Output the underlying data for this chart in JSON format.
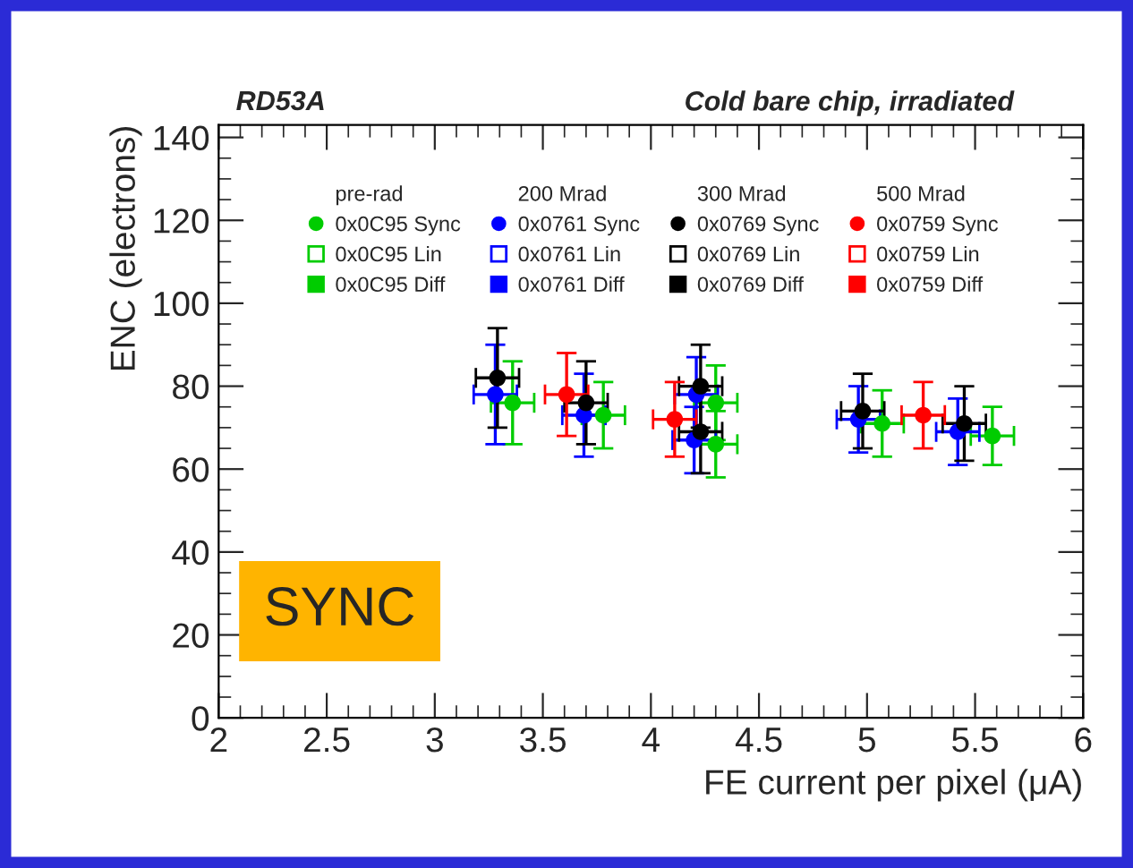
{
  "chart_data": {
    "type": "scatter",
    "title": "RD53A",
    "subtitle": "Cold bare chip, irradiated",
    "xlabel": "FE current per pixel (μA)",
    "ylabel": "ENC (electrons)",
    "annotations": [
      "pre-rad",
      "200 Mrad",
      "300 Mrad",
      "500 Mrad",
      "SYNC"
    ],
    "xlim": [
      2,
      6
    ],
    "xticks": [
      2,
      2.5,
      3,
      3.5,
      4,
      4.5,
      5,
      5.5,
      6
    ],
    "ylim": [
      0,
      143
    ],
    "yticks": [
      0,
      20,
      40,
      60,
      80,
      100,
      120,
      140
    ],
    "grid": false,
    "legend": "top",
    "series": [
      {
        "name": "0x0C95 Sync",
        "color": "#00cc00",
        "marker": "circle",
        "x": [
          3.36,
          3.78,
          4.3,
          4.3,
          5.07,
          5.58
        ],
        "values": [
          76,
          73,
          76,
          66,
          71,
          68
        ],
        "errors": [
          10,
          8,
          9,
          8,
          8,
          7
        ],
        "xerrors": [
          0.1,
          0.1,
          0.1,
          0.1,
          0.1,
          0.1
        ]
      },
      {
        "name": "0x0C95 Lin",
        "color": "#00cc00",
        "marker": "square"
      },
      {
        "name": "0x0C95 Diff",
        "color": "#00cc00",
        "marker": "square"
      },
      {
        "name": "0x0761 Sync",
        "color": "#0000ff",
        "marker": "circle",
        "x": [
          3.28,
          3.69,
          4.21,
          4.2,
          4.96,
          5.42
        ],
        "values": [
          78,
          73,
          78,
          67,
          72,
          69
        ],
        "errors": [
          12,
          10,
          9,
          8,
          8,
          8
        ],
        "xerrors": [
          0.1,
          0.1,
          0.1,
          0.1,
          0.1,
          0.1
        ]
      },
      {
        "name": "0x0761 Lin",
        "color": "#0000ff",
        "marker": "square"
      },
      {
        "name": "0x0761 Diff",
        "color": "#0000ff",
        "marker": "square"
      },
      {
        "name": "0x0769 Sync",
        "color": "#000000",
        "marker": "circle",
        "x": [
          3.29,
          3.7,
          4.23,
          4.23,
          4.98,
          5.45
        ],
        "values": [
          82,
          76,
          80,
          69,
          74,
          71
        ],
        "errors": [
          12,
          10,
          10,
          10,
          9,
          9
        ],
        "xerrors": [
          0.1,
          0.1,
          0.1,
          0.1,
          0.1,
          0.1
        ]
      },
      {
        "name": "0x0769 Lin",
        "color": "#000000",
        "marker": "square"
      },
      {
        "name": "0x0769 Diff",
        "color": "#000000",
        "marker": "square"
      },
      {
        "name": "0x0759 Sync",
        "color": "#ff0000",
        "marker": "circle",
        "x": [
          3.61,
          4.11,
          5.26
        ],
        "values": [
          78,
          72,
          73
        ],
        "errors": [
          10,
          9,
          8
        ],
        "xerrors": [
          0.1,
          0.1,
          0.1
        ]
      },
      {
        "name": "0x0759 Lin",
        "color": "#ff0000",
        "marker": "square"
      },
      {
        "name": "0x0759 Diff",
        "color": "#ff0000",
        "marker": "square"
      }
    ]
  }
}
